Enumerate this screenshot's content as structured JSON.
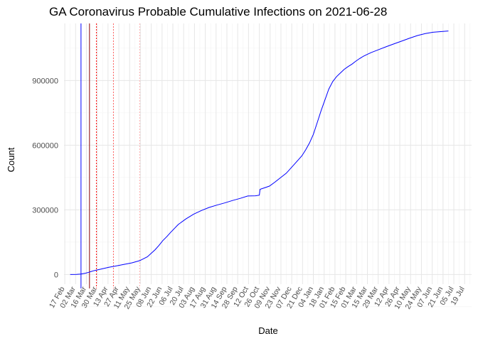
{
  "chart_data": {
    "type": "line",
    "title": "GA Coronavirus Probable Cumulative Infections on 2021-06-28",
    "xlabel": "Date",
    "ylabel": "Count",
    "ylim": [
      -45000,
      1165000
    ],
    "yticks": [
      0,
      300000,
      600000,
      900000
    ],
    "ytick_labels": [
      "0",
      "300000",
      "600000",
      "900000"
    ],
    "xrange_days": [
      -8,
      520
    ],
    "x_origin_date": "2020-02-25",
    "xtick_every_days": 14,
    "xtick_labels": [
      "17 Feb",
      "02 Mar",
      "16 Mar",
      "30 Mar",
      "13 Apr",
      "27 Apr",
      "11 May",
      "25 May",
      "08 Jun",
      "22 Jun",
      "06 Jul",
      "20 Jul",
      "03 Aug",
      "17 Aug",
      "31 Aug",
      "14 Sep",
      "28 Sep",
      "12 Oct",
      "26 Oct",
      "09 Nov",
      "23 Nov",
      "07 Dec",
      "21 Dec",
      "04 Jan",
      "18 Jan",
      "01 Feb",
      "15 Feb",
      "01 Mar",
      "15 Mar",
      "29 Mar",
      "12 Apr",
      "26 Apr",
      "10 May",
      "24 May",
      "07 Jun",
      "21 Jun",
      "05 Jul",
      "19 Jul"
    ],
    "grid": true,
    "series": [
      {
        "name": "Probable Cumulative Infections",
        "color": "#0000ff",
        "x": [
          0,
          8,
          14,
          20,
          24,
          30,
          40,
          50,
          60,
          70,
          80,
          90,
          100,
          110,
          115,
          120,
          125,
          130,
          140,
          150,
          160,
          170,
          180,
          190,
          200,
          210,
          220,
          230,
          240,
          245,
          246,
          250,
          258,
          265,
          272,
          280,
          290,
          300,
          305,
          310,
          315,
          320,
          325,
          330,
          335,
          340,
          345,
          350,
          355,
          360,
          365,
          370,
          375,
          380,
          385,
          390,
          400,
          410,
          420,
          430,
          440,
          450,
          460,
          470,
          480,
          490
        ],
        "values": [
          0,
          500,
          2000,
          6000,
          10000,
          17000,
          25000,
          33000,
          40000,
          47000,
          54000,
          64000,
          82000,
          115000,
          135000,
          157000,
          175000,
          195000,
          232000,
          258000,
          280000,
          297000,
          311000,
          322000,
          332000,
          343000,
          353000,
          364000,
          365000,
          368000,
          395000,
          400000,
          410000,
          428000,
          448000,
          470000,
          510000,
          550000,
          578000,
          610000,
          650000,
          705000,
          760000,
          810000,
          860000,
          895000,
          918000,
          935000,
          952000,
          965000,
          976000,
          990000,
          1002000,
          1013000,
          1022000,
          1030000,
          1044000,
          1058000,
          1071000,
          1084000,
          1097000,
          1109000,
          1118000,
          1124000,
          1127000,
          1130000
        ]
      }
    ],
    "vlines": [
      {
        "x": 14,
        "color": "#0000ff",
        "style": "solid"
      },
      {
        "x": 25,
        "color": "#8b0000",
        "style": "solid"
      },
      {
        "x": 34,
        "color": "#ff0000",
        "style": "dotted"
      },
      {
        "x": 56,
        "color": "#ff6060",
        "style": "dotted"
      },
      {
        "x": 90,
        "color": "#ffb0b0",
        "style": "dotted"
      }
    ]
  }
}
